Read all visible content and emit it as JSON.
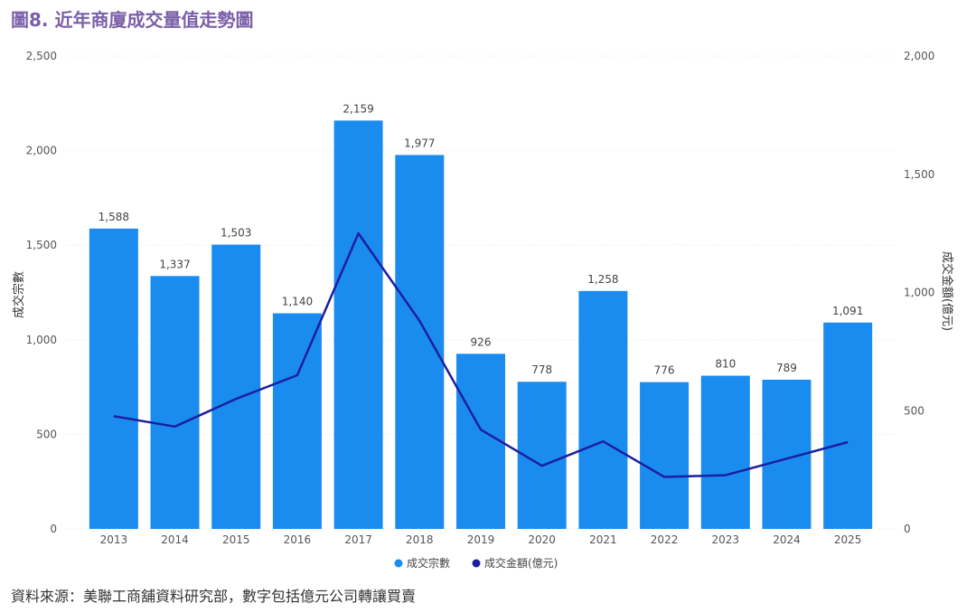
{
  "page": {
    "title": "圖8. 近年商廈成交量值走勢圖",
    "source": "資料來源：美聯工商舖資料研究部，數字包括億元公司轉讓買賣"
  },
  "chart_data": {
    "type": "bar",
    "categories": [
      "2013",
      "2014",
      "2015",
      "2016",
      "2017",
      "2018",
      "2019",
      "2020",
      "2021",
      "2022",
      "2023",
      "2024",
      "2025"
    ],
    "series": [
      {
        "name": "成交宗數",
        "type": "bar",
        "axis": "left",
        "color": "#1a8cf0",
        "values": [
          1588,
          1337,
          1503,
          1140,
          2159,
          1977,
          926,
          778,
          1258,
          776,
          810,
          789,
          1091
        ],
        "labels": [
          "1,588",
          "1,337",
          "1,503",
          "1,140",
          "2,159",
          "1,977",
          "926",
          "778",
          "1,258",
          "776",
          "810",
          "789",
          "1,091"
        ]
      },
      {
        "name": "成交金額(億元)",
        "type": "line",
        "axis": "right",
        "color": "#1c1f9e",
        "values": [
          477,
          433,
          550,
          650,
          1250,
          880,
          420,
          267,
          370,
          220,
          227,
          297,
          367
        ]
      }
    ],
    "ylabel": "成交宗數",
    "y2label": "成交金額(億元)",
    "ylim": [
      0,
      2500
    ],
    "y2lim": [
      0,
      2000
    ],
    "yticks": [
      "0",
      "500",
      "1,000",
      "1,500",
      "2,000",
      "2,500"
    ],
    "yticks_values": [
      0,
      500,
      1000,
      1500,
      2000,
      2500
    ],
    "y2ticks": [
      "0",
      "500",
      "1,000",
      "1,500",
      "2,000"
    ],
    "y2ticks_values": [
      0,
      500,
      1000,
      1500,
      2000
    ],
    "grid": true,
    "legend_position": "bottom-center"
  }
}
